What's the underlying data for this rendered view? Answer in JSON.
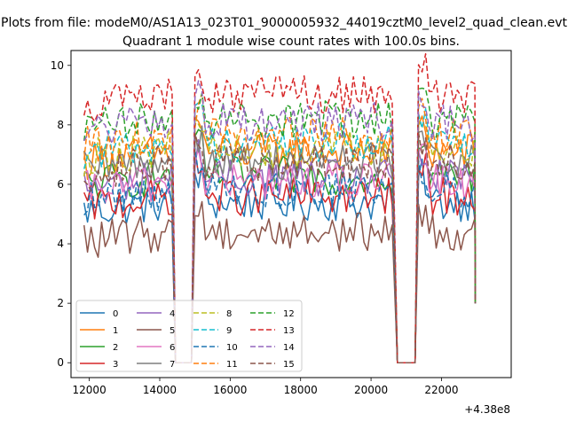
{
  "chart_data": {
    "type": "line",
    "suptitle": "Plots from file: modeM0/AS1A13_023T01_9000005932_44019cztM0_level2_quad_clean.evt",
    "title": "Quadrant 1 module wise count rates with 100.0s bins.",
    "xlabel": "",
    "ylabel": "",
    "offset_text": "+4.38e8",
    "xlim": [
      11480,
      23980
    ],
    "ylim": [
      -0.5,
      10.5
    ],
    "xticks": [
      12000,
      14000,
      16000,
      18000,
      20000,
      22000
    ],
    "xtick_labels": [
      "12000",
      "14000",
      "16000",
      "18000",
      "20000",
      "22000"
    ],
    "yticks": [
      0,
      2,
      4,
      6,
      8,
      10
    ],
    "ytick_labels": [
      "0",
      "2",
      "4",
      "6",
      "8",
      "10"
    ],
    "grid": false,
    "legend_position": "lower-left",
    "time_segments": [
      {
        "start": 11850,
        "end": 14350,
        "drop_to": 0.0
      },
      {
        "start": 15000,
        "end": 20650,
        "drop_to": 0.0
      },
      {
        "start": 21350,
        "end": 22950,
        "drop_to": 2.0
      }
    ],
    "series": [
      {
        "name": "0",
        "color": "#1f77b4",
        "dash": "solid",
        "level": 5.4
      },
      {
        "name": "1",
        "color": "#ff7f0e",
        "dash": "solid",
        "level": 7.1
      },
      {
        "name": "2",
        "color": "#2ca02c",
        "dash": "solid",
        "level": 6.3
      },
      {
        "name": "3",
        "color": "#d62728",
        "dash": "solid",
        "level": 5.6
      },
      {
        "name": "4",
        "color": "#9467bd",
        "dash": "solid",
        "level": 6.2
      },
      {
        "name": "5",
        "color": "#8c564b",
        "dash": "solid",
        "level": 4.4
      },
      {
        "name": "6",
        "color": "#e377c2",
        "dash": "solid",
        "level": 6.1
      },
      {
        "name": "7",
        "color": "#7f7f7f",
        "dash": "solid",
        "level": 6.8
      },
      {
        "name": "8",
        "color": "#bcbd22",
        "dash": "dashed",
        "level": 7.2
      },
      {
        "name": "9",
        "color": "#17becf",
        "dash": "dashed",
        "level": 7.4
      },
      {
        "name": "10",
        "color": "#1f77b4",
        "dash": "dashed",
        "level": 5.8
      },
      {
        "name": "11",
        "color": "#ff7f0e",
        "dash": "dashed",
        "level": 7.6
      },
      {
        "name": "12",
        "color": "#2ca02c",
        "dash": "dashed",
        "level": 8.2
      },
      {
        "name": "13",
        "color": "#d62728",
        "dash": "dashed",
        "level": 9.0
      },
      {
        "name": "14",
        "color": "#9467bd",
        "dash": "dashed",
        "level": 8.1
      },
      {
        "name": "15",
        "color": "#8c564b",
        "dash": "dashed",
        "level": 6.7
      }
    ]
  }
}
